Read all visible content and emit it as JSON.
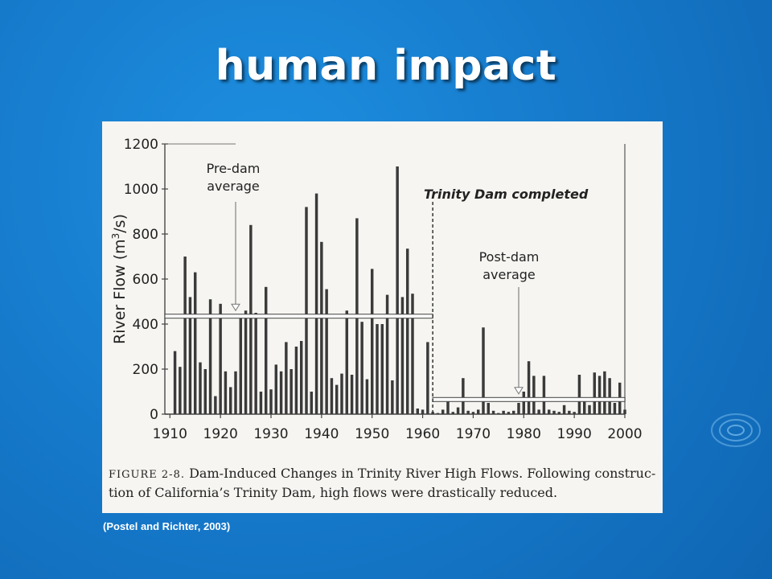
{
  "slide": {
    "title": "human impact",
    "citation": "(Postel and Richter, 2003)"
  },
  "figure": {
    "caption_label": "FIGURE 2-8.",
    "caption_line1": " Dam-Induced Changes in Trinity River High Flows. Following construc-",
    "caption_line2": "tion of California’s Trinity Dam, high flows were drastically reduced."
  },
  "colors": {
    "background": "#1577c8",
    "panel": "#f6f5f1",
    "bars": "#3a3a3a",
    "text": "#222222"
  },
  "chart_data": {
    "type": "bar",
    "ylabel": "River Flow (m³/s)",
    "ylabel_main": "River Flow (m",
    "ylabel_sup": "3",
    "ylabel_end": "/s)",
    "ylim": [
      0,
      1200
    ],
    "xlim": [
      1909,
      2000
    ],
    "yticks": [
      0,
      200,
      400,
      600,
      800,
      1000,
      1200
    ],
    "xticks": [
      1910,
      1920,
      1930,
      1940,
      1950,
      1960,
      1970,
      1980,
      1990,
      2000
    ],
    "grid": false,
    "annotations": {
      "pre_dam": {
        "line1": "Pre-dam",
        "line2": "average",
        "value": 435,
        "from_year": 1909,
        "to_year": 1962,
        "arrow_year": 1923
      },
      "post_dam": {
        "line1": "Post-dam",
        "line2": "average",
        "value": 65,
        "from_year": 1962,
        "to_year": 2000,
        "arrow_year": 1979
      },
      "dam_completed": {
        "label": "Trinity Dam completed",
        "year": 1962
      }
    },
    "years": [
      1911,
      1912,
      1913,
      1914,
      1915,
      1916,
      1917,
      1918,
      1919,
      1920,
      1921,
      1922,
      1923,
      1924,
      1925,
      1926,
      1927,
      1928,
      1929,
      1930,
      1931,
      1932,
      1933,
      1934,
      1935,
      1936,
      1937,
      1938,
      1939,
      1940,
      1941,
      1942,
      1943,
      1944,
      1945,
      1946,
      1947,
      1948,
      1949,
      1950,
      1951,
      1952,
      1953,
      1954,
      1955,
      1956,
      1957,
      1958,
      1959,
      1960,
      1961,
      1962,
      1963,
      1964,
      1965,
      1966,
      1967,
      1968,
      1969,
      1970,
      1971,
      1972,
      1973,
      1974,
      1975,
      1976,
      1977,
      1978,
      1979,
      1980,
      1981,
      1982,
      1983,
      1984,
      1985,
      1986,
      1987,
      1988,
      1989,
      1990,
      1991,
      1992,
      1993,
      1994,
      1995,
      1996,
      1997,
      1998,
      1999,
      2000
    ],
    "values": [
      280,
      210,
      700,
      520,
      630,
      230,
      200,
      510,
      80,
      490,
      190,
      120,
      190,
      440,
      460,
      840,
      450,
      100,
      565,
      110,
      220,
      190,
      320,
      200,
      300,
      325,
      920,
      100,
      980,
      765,
      555,
      160,
      130,
      180,
      460,
      175,
      870,
      410,
      155,
      645,
      400,
      400,
      530,
      150,
      1100,
      520,
      735,
      535,
      25,
      20,
      320,
      10,
      5,
      20,
      60,
      10,
      30,
      160,
      15,
      10,
      20,
      385,
      50,
      15,
      5,
      15,
      10,
      15,
      50,
      100,
      235,
      170,
      20,
      170,
      20,
      15,
      10,
      40,
      15,
      10,
      175,
      75,
      40,
      185,
      170,
      190,
      160,
      50,
      140,
      20
    ]
  }
}
